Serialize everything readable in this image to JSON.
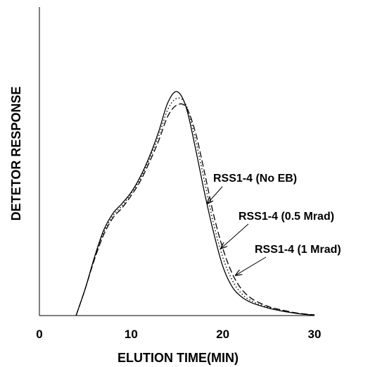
{
  "chart_data": {
    "type": "line",
    "title": "",
    "xlabel": "ELUTION TIME(MIN)",
    "ylabel": "DETETOR RESPONSE",
    "xlim": [
      0,
      30
    ],
    "ylim": [
      0,
      1.05
    ],
    "x_ticks": [
      "0",
      "10",
      "20",
      "30"
    ],
    "y_ticks": [],
    "grid": false,
    "legend": "none",
    "series": [
      {
        "style": "solid",
        "x": [
          4,
          5,
          6,
          7,
          8,
          9,
          10,
          11,
          12,
          13,
          14,
          15,
          16,
          17,
          18,
          19,
          20,
          21,
          22,
          23,
          24,
          25,
          26,
          27,
          28,
          29,
          30
        ],
        "y": [
          0.0,
          0.12,
          0.26,
          0.38,
          0.455,
          0.5,
          0.55,
          0.62,
          0.71,
          0.82,
          0.95,
          1.0,
          0.93,
          0.75,
          0.55,
          0.37,
          0.22,
          0.13,
          0.085,
          0.06,
          0.045,
          0.033,
          0.024,
          0.016,
          0.01,
          0.005,
          0.002
        ]
      },
      {
        "style": "dotted",
        "x": [
          4,
          5,
          6,
          7,
          8,
          9,
          10,
          11,
          12,
          13,
          14,
          15,
          16,
          17,
          18,
          19,
          20,
          21,
          22,
          23,
          24,
          25,
          26,
          27,
          28,
          29,
          30
        ],
        "y": [
          0.0,
          0.12,
          0.255,
          0.37,
          0.445,
          0.49,
          0.545,
          0.61,
          0.7,
          0.8,
          0.92,
          0.97,
          0.94,
          0.79,
          0.6,
          0.41,
          0.26,
          0.16,
          0.1,
          0.068,
          0.05,
          0.036,
          0.026,
          0.018,
          0.011,
          0.006,
          0.003
        ]
      },
      {
        "style": "dashed",
        "x": [
          4,
          5,
          6,
          7,
          8,
          9,
          10,
          11,
          12,
          13,
          14,
          15,
          16,
          17,
          18,
          19,
          20,
          21,
          22,
          23,
          24,
          25,
          26,
          27,
          28,
          29,
          30
        ],
        "y": [
          0.0,
          0.12,
          0.25,
          0.36,
          0.435,
          0.48,
          0.535,
          0.6,
          0.685,
          0.78,
          0.89,
          0.94,
          0.93,
          0.82,
          0.64,
          0.45,
          0.3,
          0.19,
          0.12,
          0.08,
          0.057,
          0.04,
          0.029,
          0.02,
          0.012,
          0.007,
          0.003
        ]
      }
    ],
    "annotations": [
      {
        "text": "RSS1-4 (No EB)",
        "arrow_to": [
          18.3,
          0.5
        ]
      },
      {
        "text": "RSS1-4 (0.5 Mrad)",
        "arrow_to": [
          19.8,
          0.3
        ]
      },
      {
        "text": "RSS1-4 (1 Mrad)",
        "arrow_to": [
          21.4,
          0.18
        ]
      }
    ]
  }
}
